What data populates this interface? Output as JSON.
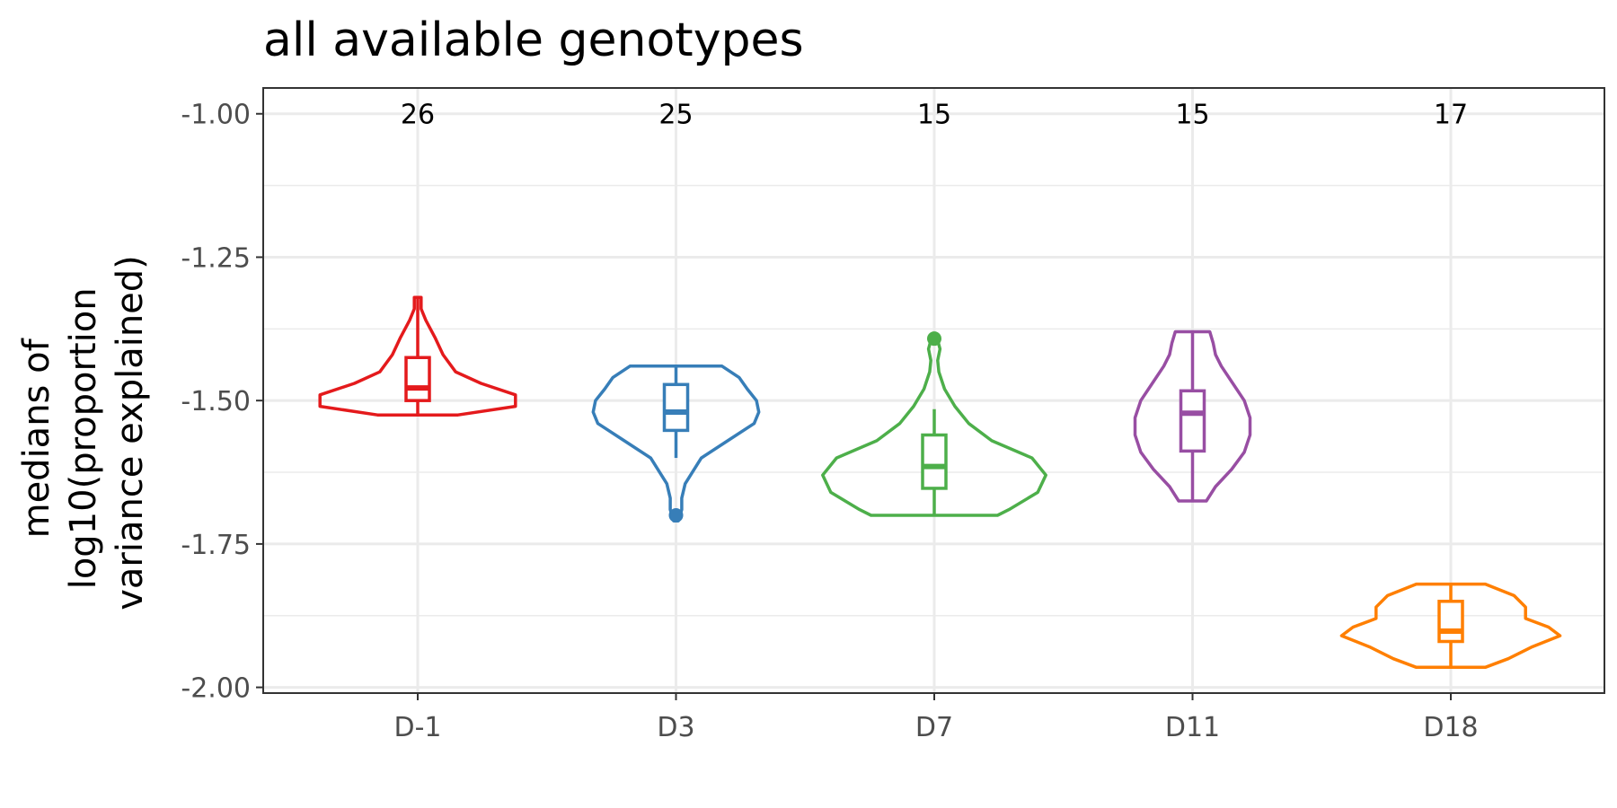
{
  "chart_data": {
    "type": "violin",
    "title": "all available genotypes",
    "xlabel": "",
    "ylabel": "medians of log10(proportion variance explained)",
    "ylabel_lines": [
      "medians of",
      "log10(proportion",
      "variance explained)"
    ],
    "ylim": [
      -2.0,
      -0.96
    ],
    "y_ticks": [
      -1.0,
      -1.25,
      -1.5,
      -1.75,
      -2.0
    ],
    "y_tick_labels": [
      "-1.00",
      "-1.25",
      "-1.50",
      "-1.75",
      "-2.00"
    ],
    "grid": true,
    "legend": "none",
    "categories": [
      "D-1",
      "D3",
      "D7",
      "D11",
      "D18"
    ],
    "counts": [
      "26",
      "25",
      "15",
      "15",
      "17"
    ],
    "groups": [
      {
        "name": "D-1",
        "color": "#e41a1c",
        "violin": [
          [
            -1.525,
            0.35
          ],
          [
            -1.51,
            0.85
          ],
          [
            -1.49,
            0.85
          ],
          [
            -1.47,
            0.55
          ],
          [
            -1.45,
            0.33
          ],
          [
            -1.42,
            0.22
          ],
          [
            -1.39,
            0.15
          ],
          [
            -1.36,
            0.07
          ],
          [
            -1.34,
            0.03
          ],
          [
            -1.32,
            0.03
          ]
        ],
        "box": {
          "q1": -1.5,
          "median": -1.478,
          "q3": -1.425,
          "lower": -1.525,
          "upper": -1.32
        },
        "outliers": []
      },
      {
        "name": "D3",
        "color": "#377eb8",
        "violin": [
          [
            -1.71,
            0.02
          ],
          [
            -1.69,
            0.05
          ],
          [
            -1.67,
            0.05
          ],
          [
            -1.645,
            0.08
          ],
          [
            -1.6,
            0.22
          ],
          [
            -1.57,
            0.45
          ],
          [
            -1.54,
            0.68
          ],
          [
            -1.52,
            0.72
          ],
          [
            -1.5,
            0.7
          ],
          [
            -1.48,
            0.62
          ],
          [
            -1.46,
            0.55
          ],
          [
            -1.44,
            0.4
          ]
        ],
        "box": {
          "q1": -1.552,
          "median": -1.52,
          "q3": -1.472,
          "lower": -1.6,
          "upper": -1.44
        },
        "outliers": [
          -1.7
        ]
      },
      {
        "name": "D7",
        "color": "#4daf4a",
        "violin": [
          [
            -1.7,
            0.55
          ],
          [
            -1.69,
            0.65
          ],
          [
            -1.66,
            0.9
          ],
          [
            -1.63,
            0.97
          ],
          [
            -1.6,
            0.85
          ],
          [
            -1.57,
            0.5
          ],
          [
            -1.54,
            0.3
          ],
          [
            -1.51,
            0.18
          ],
          [
            -1.48,
            0.09
          ],
          [
            -1.45,
            0.04
          ],
          [
            -1.43,
            0.03
          ],
          [
            -1.41,
            0.05
          ],
          [
            -1.395,
            0.03
          ]
        ],
        "box": {
          "q1": -1.653,
          "median": -1.615,
          "q3": -1.56,
          "lower": -1.7,
          "upper": -1.515
        },
        "outliers": [
          -1.392
        ]
      },
      {
        "name": "D11",
        "color": "#984ea3",
        "violin": [
          [
            -1.675,
            0.12
          ],
          [
            -1.65,
            0.2
          ],
          [
            -1.62,
            0.34
          ],
          [
            -1.59,
            0.45
          ],
          [
            -1.56,
            0.5
          ],
          [
            -1.53,
            0.5
          ],
          [
            -1.5,
            0.45
          ],
          [
            -1.47,
            0.35
          ],
          [
            -1.44,
            0.25
          ],
          [
            -1.42,
            0.2
          ],
          [
            -1.4,
            0.18
          ],
          [
            -1.38,
            0.15
          ]
        ],
        "box": {
          "q1": -1.588,
          "median": -1.522,
          "q3": -1.483,
          "lower": -1.675,
          "upper": -1.38
        },
        "outliers": []
      },
      {
        "name": "D18",
        "color": "#ff7f00",
        "violin": [
          [
            -1.965,
            0.3
          ],
          [
            -1.95,
            0.5
          ],
          [
            -1.93,
            0.7
          ],
          [
            -1.91,
            0.95
          ],
          [
            -1.895,
            0.85
          ],
          [
            -1.88,
            0.65
          ],
          [
            -1.86,
            0.65
          ],
          [
            -1.84,
            0.55
          ],
          [
            -1.82,
            0.3
          ]
        ],
        "box": {
          "q1": -1.92,
          "median": -1.902,
          "q3": -1.85,
          "lower": -1.965,
          "upper": -1.82
        },
        "outliers": []
      }
    ]
  }
}
